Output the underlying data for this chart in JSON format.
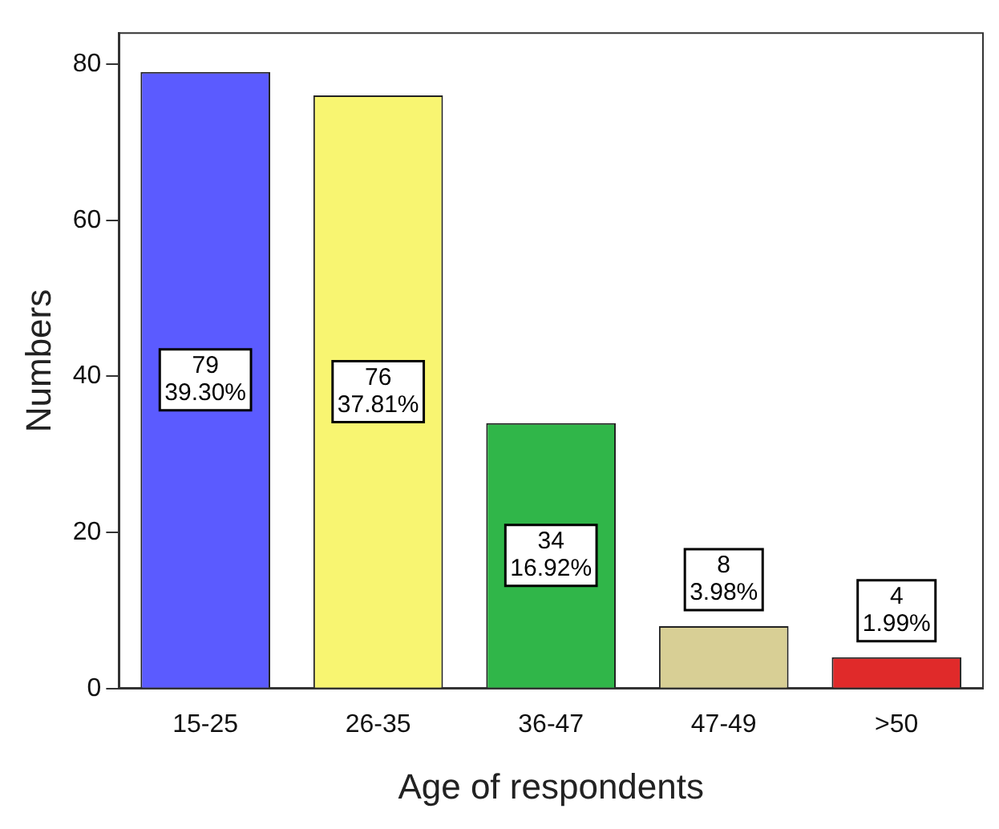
{
  "chart_data": {
    "type": "bar",
    "xlabel": "Age of respondents",
    "ylabel": "Numbers",
    "categories": [
      "15-25",
      "26-35",
      "36-47",
      "47-49",
      ">50"
    ],
    "values": [
      79,
      76,
      34,
      8,
      4
    ],
    "colors": [
      "#5b5bff",
      "#f8f571",
      "#30b649",
      "#d8cf95",
      "#e02a2a"
    ],
    "value_labels": [
      "79\n39.30%",
      "76\n37.81%",
      "34\n16.92%",
      "8\n3.98%",
      "4\n1.99%"
    ],
    "ylim": [
      0,
      84
    ],
    "yticks": [
      0,
      20,
      40,
      60,
      80
    ],
    "grid": false,
    "legend": false
  }
}
